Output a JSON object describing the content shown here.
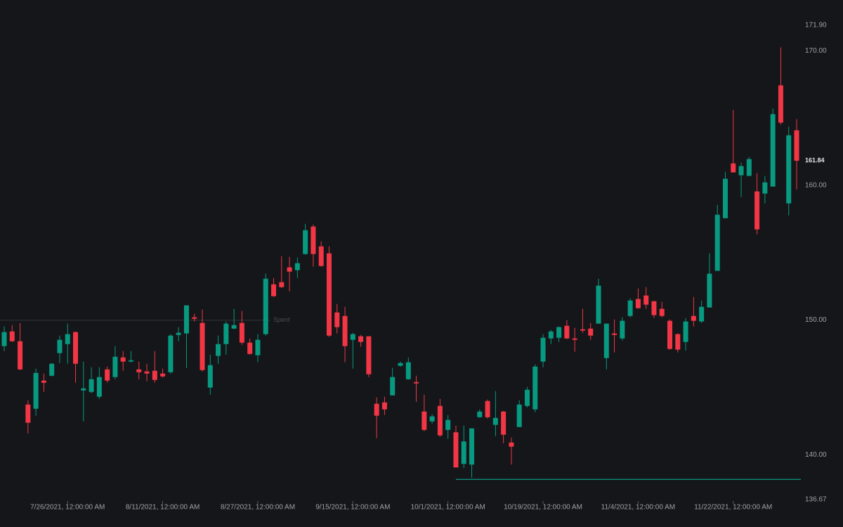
{
  "chart_data": {
    "type": "candlestick",
    "categories": [
      null,
      null,
      null,
      null,
      null,
      null,
      null,
      null,
      "7/26/2021, 12:00:00 AM",
      null,
      null,
      null,
      null,
      null,
      null,
      null,
      null,
      null,
      null,
      null,
      "8/11/2021, 12:00:00 AM",
      null,
      null,
      null,
      null,
      null,
      null,
      null,
      null,
      null,
      null,
      null,
      "8/27/2021, 12:00:00 AM",
      null,
      null,
      null,
      null,
      null,
      null,
      null,
      null,
      null,
      null,
      null,
      "9/15/2021, 12:00:00 AM",
      null,
      null,
      null,
      null,
      null,
      null,
      null,
      null,
      null,
      null,
      null,
      "10/1/2021, 12:00:00 AM",
      null,
      null,
      null,
      null,
      null,
      null,
      null,
      null,
      null,
      null,
      null,
      "10/19/2021, 12:00:00 AM",
      null,
      null,
      null,
      null,
      null,
      null,
      null,
      null,
      null,
      null,
      null,
      "11/4/2021, 12:00:00 AM",
      null,
      null,
      null,
      null,
      null,
      null,
      null,
      null,
      null,
      null,
      null,
      "11/22/2021, 12:00:00 AM",
      null,
      null,
      null,
      null,
      null,
      null,
      null,
      null
    ],
    "open": [
      148.07,
      149.16,
      148.43,
      143.73,
      143.42,
      145.51,
      145.87,
      147.55,
      148.22,
      149.11,
      144.78,
      144.67,
      144.31,
      146.34,
      145.77,
      147.23,
      146.92,
      146.34,
      146.19,
      146.24,
      146.03,
      146.13,
      148.9,
      149.01,
      150.21,
      149.79,
      144.99,
      147.34,
      148.22,
      149.37,
      149.79,
      148.33,
      147.39,
      148.96,
      152.66,
      152.82,
      153.92,
      153.71,
      154.91,
      156.95,
      155.48,
      154.96,
      150.57,
      150.31,
      148.54,
      148.8,
      148.8,
      143.79,
      143.89,
      144.41,
      146.61,
      145.61,
      145.4,
      143.21,
      142.48,
      143.63,
      141.85,
      141.67,
      139.32,
      139.27,
      142.79,
      143.99,
      142.22,
      143.21,
      140.91,
      142.06,
      143.63,
      143.37,
      146.92,
      148.64,
      148.69,
      149.58,
      148.64,
      149.32,
      149.37,
      149.74,
      147.18,
      149.01,
      148.64,
      150.31,
      151.57,
      151.83,
      151.41,
      150.84,
      149.95,
      148.96,
      148.38,
      150.31,
      149.9,
      150.94,
      153.66,
      157.57,
      161.64,
      160.76,
      160.71,
      159.56,
      159.4,
      159.92,
      167.44,
      158.67,
      164.1
    ],
    "high": [
      149.53,
      149.63,
      149.79,
      144.05,
      146.4,
      146.03,
      146.81,
      148.85,
      149.74,
      149.16,
      146.92,
      146.5,
      146.5,
      146.55,
      148.07,
      147.7,
      147.7,
      146.92,
      146.76,
      147.7,
      146.4,
      148.96,
      149.48,
      151.1,
      150.47,
      150.78,
      147.44,
      148.85,
      149.9,
      150.84,
      150.68,
      148.64,
      148.96,
      153.45,
      153.13,
      154.75,
      154.7,
      154.65,
      157.15,
      157.1,
      155.85,
      155.48,
      151.2,
      150.99,
      149.06,
      148.9,
      148.8,
      144.26,
      144.31,
      146.45,
      146.92,
      147.23,
      145.87,
      144.46,
      143.0,
      144.15,
      142.95,
      142.17,
      142.17,
      141.96,
      143.37,
      144.1,
      144.73,
      143.26,
      141.28,
      144.05,
      145.04,
      146.71,
      148.96,
      149.27,
      149.53,
      150.0,
      149.43,
      150.84,
      149.79,
      153.08,
      149.74,
      150.05,
      150.21,
      151.62,
      152.35,
      152.45,
      151.41,
      151.36,
      150.05,
      149.01,
      150.16,
      151.72,
      151.46,
      154.96,
      158.56,
      161.02,
      165.61,
      161.7,
      162.11,
      160.91,
      160.71,
      165.72,
      170.26,
      164.36,
      164.93
    ],
    "low": [
      147.7,
      148.38,
      146.29,
      141.59,
      142.9,
      144.67,
      145.82,
      146.81,
      146.76,
      145.35,
      142.48,
      144.57,
      144.15,
      145.35,
      145.61,
      146.24,
      146.87,
      145.61,
      145.46,
      145.35,
      145.72,
      146.03,
      148.43,
      146.45,
      149.9,
      146.19,
      144.46,
      146.76,
      147.44,
      149.32,
      148.17,
      147.44,
      146.87,
      148.85,
      151.72,
      152.4,
      152.14,
      153.13,
      154.86,
      153.97,
      153.97,
      148.75,
      149.01,
      146.87,
      146.4,
      148.02,
      145.77,
      141.23,
      142.95,
      144.41,
      146.55,
      145.56,
      143.94,
      141.75,
      142.32,
      141.33,
      141.18,
      139.06,
      139.01,
      138.3,
      142.74,
      142.69,
      141.38,
      140.86,
      139.27,
      142.06,
      143.52,
      143.16,
      146.5,
      148.22,
      148.38,
      148.59,
      147.65,
      149.06,
      148.54,
      149.74,
      146.34,
      147.6,
      148.49,
      150.21,
      150.84,
      150.84,
      150.16,
      150.21,
      147.81,
      147.6,
      147.75,
      149.53,
      149.79,
      150.94,
      153.66,
      157.57,
      160.97,
      159.14,
      160.71,
      156.37,
      158.67,
      159.92,
      164.52,
      157.78,
      159.71
    ],
    "close": [
      149.11,
      148.43,
      146.34,
      142.38,
      146.08,
      145.35,
      146.76,
      148.54,
      148.96,
      146.76,
      144.93,
      145.61,
      145.77,
      145.51,
      147.28,
      146.92,
      147.02,
      146.13,
      146.03,
      145.56,
      145.82,
      148.85,
      149.06,
      151.1,
      150.1,
      146.29,
      146.66,
      148.22,
      149.74,
      149.63,
      148.33,
      147.49,
      148.54,
      153.08,
      151.78,
      152.45,
      153.6,
      154.23,
      156.68,
      154.91,
      154.02,
      148.85,
      149.48,
      148.07,
      148.96,
      148.38,
      145.98,
      142.9,
      143.37,
      145.77,
      146.81,
      146.87,
      145.3,
      141.85,
      142.85,
      141.44,
      142.59,
      139.06,
      140.99,
      141.96,
      143.21,
      142.79,
      142.74,
      141.49,
      140.6,
      143.73,
      144.83,
      146.55,
      148.69,
      149.16,
      149.48,
      148.64,
      148.54,
      149.22,
      148.85,
      152.56,
      149.74,
      148.9,
      149.95,
      151.46,
      150.89,
      151.15,
      150.37,
      150.31,
      147.86,
      147.81,
      149.9,
      149.95,
      150.99,
      153.45,
      157.83,
      160.5,
      160.97,
      161.44,
      161.96,
      156.74,
      160.23,
      165.3,
      164.67,
      163.73,
      161.84
    ],
    "up_color": "#089981",
    "down_color": "#f23645",
    "ylim": [
      136.67,
      171.9
    ],
    "yticks": [
      136.67,
      {
        "value": 140,
        "label": "140.00"
      },
      {
        "value": 150,
        "label": "150.00"
      },
      {
        "value": 160,
        "label": "160.00"
      },
      {
        "value": 170,
        "label": "170.00"
      },
      {
        "value": 171.9,
        "label": "171.90"
      }
    ],
    "price_lines": [
      {
        "value": 150,
        "label": "Spent",
        "color": "#2a2c31"
      },
      {
        "value": 138.17,
        "color": "#089981",
        "from_index": 57
      }
    ]
  }
}
